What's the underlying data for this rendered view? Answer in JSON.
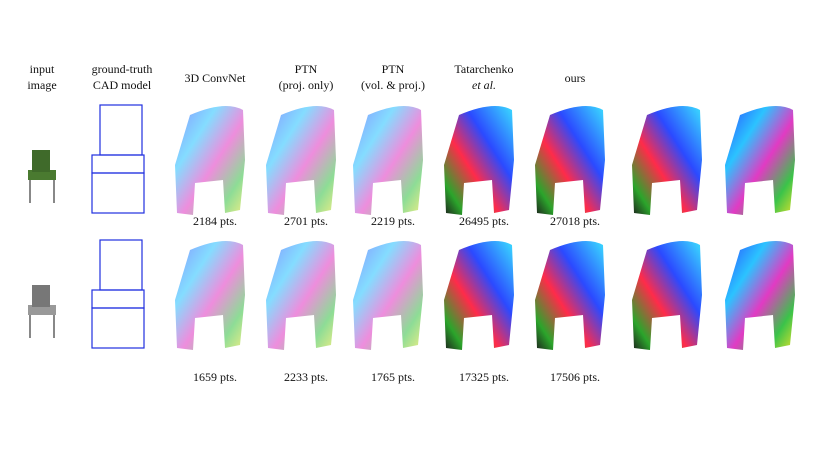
{
  "headers": [
    {
      "lines": [
        "input",
        "image"
      ]
    },
    {
      "lines": [
        "ground-truth",
        "CAD model"
      ]
    },
    {
      "lines": [
        "3D ConvNet"
      ]
    },
    {
      "lines": [
        "PTN",
        "(proj. only)"
      ]
    },
    {
      "lines": [
        "PTN",
        "(vol. & proj.)"
      ]
    },
    {
      "lines": [
        "Tatarchenko",
        "et al."
      ]
    },
    {
      "lines": [
        "ours"
      ]
    }
  ],
  "rows": [
    {
      "counts": [
        "2184 pts.",
        "2701 pts.",
        "2219 pts.",
        "26495 pts.",
        "27018 pts."
      ]
    },
    {
      "counts": [
        "1659 pts.",
        "2233 pts.",
        "1765 pts.",
        "17325 pts.",
        "17506 pts."
      ]
    }
  ]
}
